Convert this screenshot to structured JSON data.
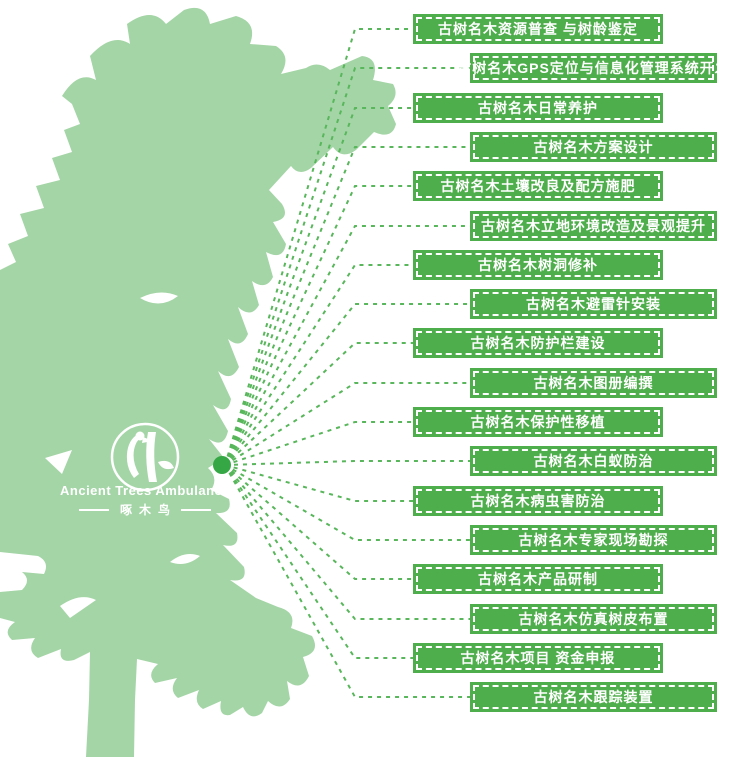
{
  "logo": {
    "name_en": "Ancient Trees Ambulance",
    "name_zh": "啄木鸟",
    "icon": "woodpecker-icon"
  },
  "colors": {
    "tree": "#a4d5a6",
    "label_bg": "#4fae4c",
    "line": "#58b65b",
    "dot": "#35a845",
    "text_on_green": "#ffffff"
  },
  "diagram": {
    "items": [
      {
        "label": "古树名木资源普查 与树龄鉴定"
      },
      {
        "label": "古树名木GPS定位与信息化管理系统开发"
      },
      {
        "label": "古树名木日常养护"
      },
      {
        "label": "古树名木方案设计"
      },
      {
        "label": "古树名木土壤改良及配方施肥"
      },
      {
        "label": "古树名木立地环境改造及景观提升"
      },
      {
        "label": "古树名木树洞修补"
      },
      {
        "label": "古树名木避雷针安装"
      },
      {
        "label": "古树名木防护栏建设"
      },
      {
        "label": "古树名木图册编撰"
      },
      {
        "label": "古树名木保护性移植"
      },
      {
        "label": "古树名木白蚁防治"
      },
      {
        "label": "古树名木病虫害防治"
      },
      {
        "label": "古树名木专家现场勘探"
      },
      {
        "label": "古树名木产品研制"
      },
      {
        "label": "古树名木仿真树皮布置"
      },
      {
        "label": "古树名木项目 资金申报"
      },
      {
        "label": "古树名木跟踪装置"
      }
    ]
  }
}
